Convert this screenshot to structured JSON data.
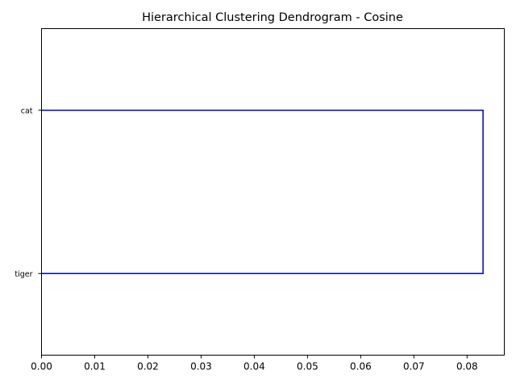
{
  "chart_data": {
    "type": "dendrogram",
    "orientation": "horizontal",
    "title": "Hierarchical Clustering Dendrogram - Cosine",
    "xlabel": "",
    "ylabel": "",
    "xlim": [
      0,
      0.087
    ],
    "xticks": [
      0.0,
      0.01,
      0.02,
      0.03,
      0.04,
      0.05,
      0.06,
      0.07,
      0.08
    ],
    "xtick_labels": [
      "0.00",
      "0.01",
      "0.02",
      "0.03",
      "0.04",
      "0.05",
      "0.06",
      "0.07",
      "0.08"
    ],
    "leaves": [
      "cat",
      "tiger"
    ],
    "merges": [
      {
        "left": "cat",
        "right": "tiger",
        "distance": 0.083
      }
    ],
    "link_color": "#0000cc",
    "grid": false
  }
}
